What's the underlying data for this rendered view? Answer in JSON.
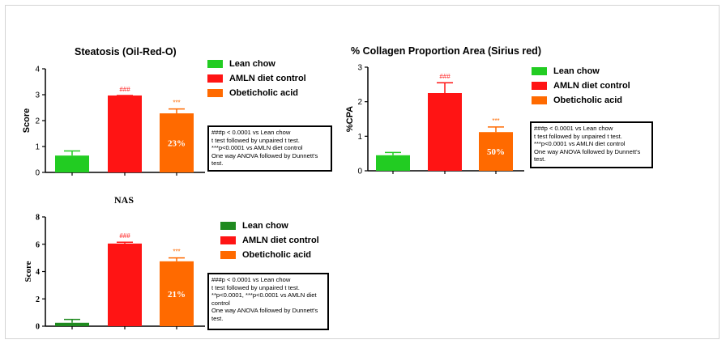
{
  "colors": {
    "lean_green_1": "#22cc22",
    "lean_green_3": "#1f8a1f",
    "amln_red": "#ff1414",
    "oca_orange": "#ff6a00",
    "axis": "#000000"
  },
  "chart_data": [
    {
      "type": "bar",
      "title": "Steatosis (Oil-Red-O)",
      "ylabel": "Score",
      "ylim": [
        0,
        4
      ],
      "yticks": [
        "0",
        "1",
        "2",
        "3",
        "4"
      ],
      "categories": [
        "Lean chow",
        "AMLN diet control",
        "Obeticholic acid"
      ],
      "values": [
        0.65,
        2.97,
        2.28
      ],
      "errors": [
        0.18,
        0.0,
        0.17
      ],
      "significance": [
        "",
        "###",
        "***"
      ],
      "bar_labels": [
        "",
        "",
        "23%"
      ],
      "legend": [
        "Lean chow",
        "AMLN diet control",
        "Obeticholic acid"
      ],
      "legend_position": "right",
      "note": [
        "###p < 0.0001 vs Lean chow",
        "t test followed by unpaired t test.",
        "***p<0.0001  vs AMLN diet control",
        "One way ANOVA followed by Dunnett's",
        "test."
      ]
    },
    {
      "type": "bar",
      "title": "% Collagen Proportion Area (Sirius red)",
      "ylabel": "%CPA",
      "ylim": [
        0,
        3
      ],
      "yticks": [
        "0",
        "1",
        "2",
        "3"
      ],
      "categories": [
        "Lean chow",
        "AMLN diet control",
        "Obeticholic acid"
      ],
      "values": [
        0.45,
        2.25,
        1.12
      ],
      "errors": [
        0.08,
        0.3,
        0.15
      ],
      "significance": [
        "",
        "###",
        "***"
      ],
      "bar_labels": [
        "",
        "",
        "50%"
      ],
      "legend": [
        "Lean chow",
        "AMLN diet control",
        "Obeticholic acid"
      ],
      "legend_position": "right",
      "note": [
        "###p < 0.0001 vs Lean chow",
        "t test followed by unpaired t test.",
        "***p<0.0001 vs AMLN diet control",
        "One way ANOVA followed by Dunnett's",
        "test."
      ]
    },
    {
      "type": "bar",
      "title": "NAS",
      "ylabel": "Score",
      "ylim": [
        0,
        8
      ],
      "yticks": [
        "0",
        "2",
        "4",
        "6",
        "8"
      ],
      "categories": [
        "Lean chow",
        "AMLN diet control",
        "Obeticholic acid"
      ],
      "values": [
        0.25,
        6.05,
        4.75
      ],
      "errors": [
        0.25,
        0.1,
        0.25
      ],
      "significance": [
        "",
        "###",
        "***"
      ],
      "bar_labels": [
        "",
        "",
        "21%"
      ],
      "legend": [
        "Lean chow",
        "AMLN diet control",
        "Obeticholic acid"
      ],
      "legend_position": "right",
      "note": [
        "###p < 0.0001 vs Lean chow",
        "t test followed by unpaired t test.",
        "**p<0.0001, ***p<0.0001 vs AMLN diet",
        "control",
        "One way ANOVA followed by Dunnett's",
        "test."
      ]
    }
  ]
}
